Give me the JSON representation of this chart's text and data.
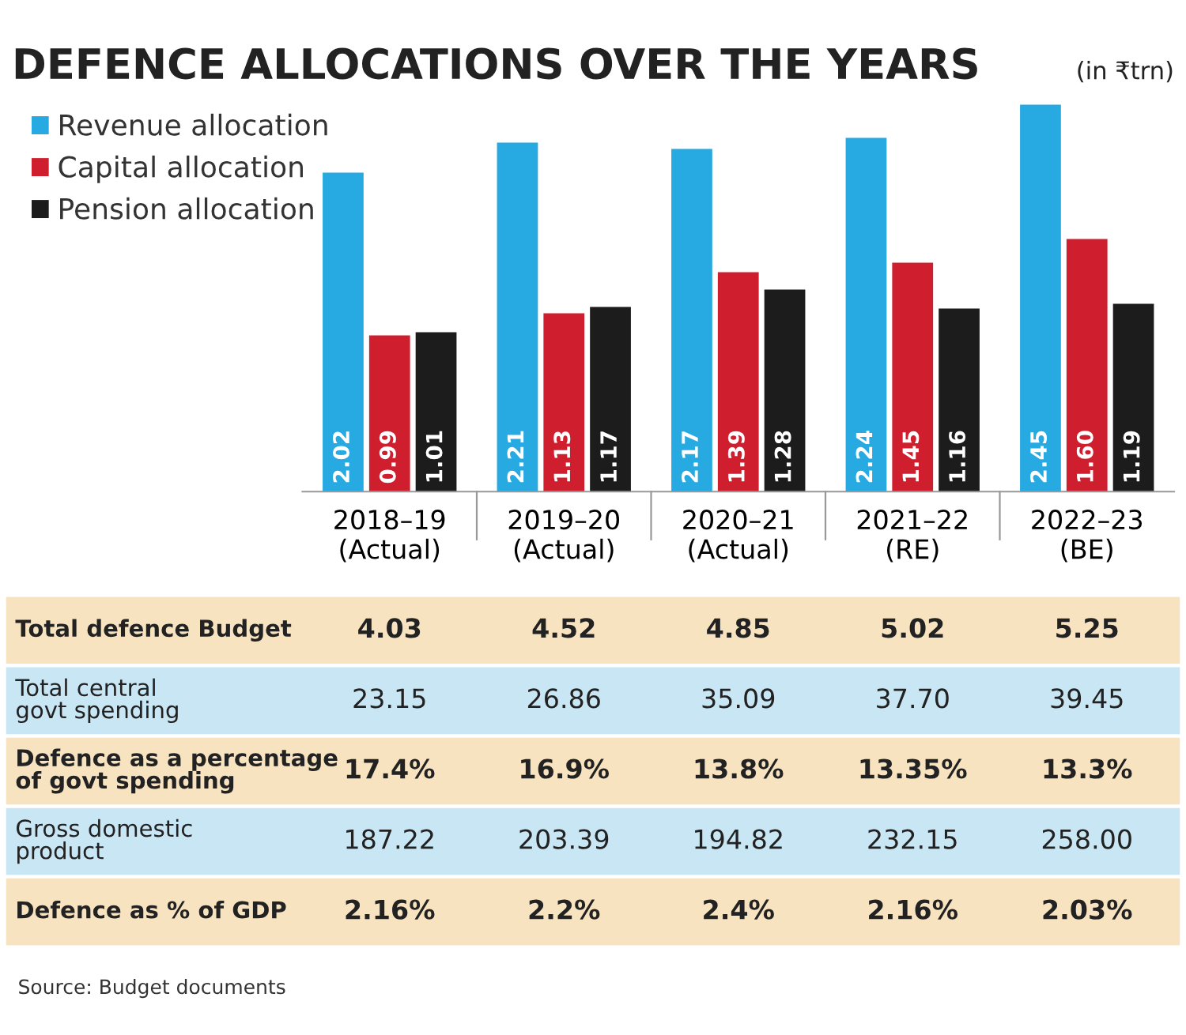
{
  "chart_data": [
    {
      "type": "bar",
      "title": "DEFENCE ALLOCATIONS OVER THE YEARS",
      "subtitle": "(in ₹trn)",
      "categories": [
        "2018–19\n(Actual)",
        "2019–20\n(Actual)",
        "2020–21\n(Actual)",
        "2021–22\n(RE)",
        "2022–23\n(BE)"
      ],
      "series": [
        {
          "name": "Revenue allocation",
          "color": "#27a9e1",
          "values": [
            2.02,
            2.21,
            2.17,
            2.24,
            2.45
          ]
        },
        {
          "name": "Capital allocation",
          "color": "#cf1f2e",
          "values": [
            0.99,
            1.13,
            1.39,
            1.45,
            1.6
          ],
          "value_labels": [
            "0.99",
            "1.13",
            "1.39",
            "1.45",
            "1.60"
          ]
        },
        {
          "name": "Pension allocation",
          "color": "#1c1c1c",
          "values": [
            1.01,
            1.17,
            1.28,
            1.16,
            1.19
          ]
        }
      ],
      "data_labels": true,
      "legend": "top left",
      "grid": false,
      "annotations": [
        "Source: Budget documents"
      ]
    },
    {
      "type": "other",
      "annotations": [
        "Total defence Budget",
        "4.03",
        "4.52",
        "4.85",
        "5.02",
        "5.25",
        "Total central govt spending",
        "23.15",
        "26.86",
        "35.09",
        "37.70",
        "39.45",
        "Defence as a percentage of govt spending",
        "17.4%",
        "16.9%",
        "13.8%",
        "13.35%",
        "13.3%",
        "Gross domestic product",
        "187.22",
        "203.39",
        "194.82",
        "232.15",
        "258.00",
        "Defence as % of GDP",
        "2.16%",
        "2.2%",
        "2.4%",
        "2.16%",
        "2.03%"
      ]
    }
  ]
}
